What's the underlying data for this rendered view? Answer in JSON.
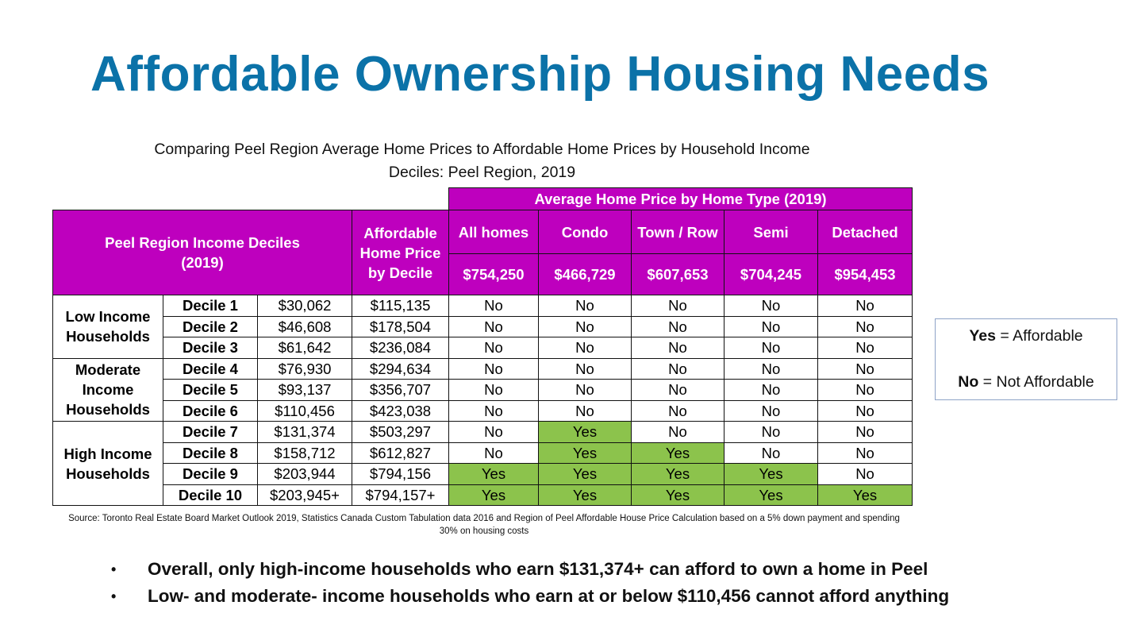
{
  "title": "Affordable Ownership Housing Needs",
  "subtitle_line1": "Comparing Peel Region Average Home Prices to Affordable Home Prices by Household Income",
  "subtitle_line2": "Deciles: Peel Region, 2019",
  "table": {
    "group_header": "Average Home Price by Home Type (2019)",
    "income_header": "Peel Region Income Deciles (2019)",
    "affordable_header": "Affordable Home Price by Decile",
    "home_types": [
      {
        "label": "All homes",
        "price": "$754,250"
      },
      {
        "label": "Condo",
        "price": "$466,729"
      },
      {
        "label": "Town / Row",
        "price": "$607,653"
      },
      {
        "label": "Semi",
        "price": "$704,245"
      },
      {
        "label": "Detached",
        "price": "$954,453"
      }
    ],
    "groups": [
      {
        "label": "Low Income Households",
        "rows": 3
      },
      {
        "label": "Moderate Income Households",
        "rows": 3
      },
      {
        "label": "High Income Households",
        "rows": 4
      }
    ],
    "rows": [
      {
        "decile": "Decile 1",
        "income": "$30,062",
        "affordable": "$115,135",
        "values": [
          "No",
          "No",
          "No",
          "No",
          "No"
        ]
      },
      {
        "decile": "Decile 2",
        "income": "$46,608",
        "affordable": "$178,504",
        "values": [
          "No",
          "No",
          "No",
          "No",
          "No"
        ]
      },
      {
        "decile": "Decile 3",
        "income": "$61,642",
        "affordable": "$236,084",
        "values": [
          "No",
          "No",
          "No",
          "No",
          "No"
        ]
      },
      {
        "decile": "Decile 4",
        "income": "$76,930",
        "affordable": "$294,634",
        "values": [
          "No",
          "No",
          "No",
          "No",
          "No"
        ]
      },
      {
        "decile": "Decile 5",
        "income": "$93,137",
        "affordable": "$356,707",
        "values": [
          "No",
          "No",
          "No",
          "No",
          "No"
        ]
      },
      {
        "decile": "Decile 6",
        "income": "$110,456",
        "affordable": "$423,038",
        "values": [
          "No",
          "No",
          "No",
          "No",
          "No"
        ]
      },
      {
        "decile": "Decile 7",
        "income": "$131,374",
        "affordable": "$503,297",
        "values": [
          "No",
          "Yes",
          "No",
          "No",
          "No"
        ]
      },
      {
        "decile": "Decile 8",
        "income": "$158,712",
        "affordable": "$612,827",
        "values": [
          "No",
          "Yes",
          "Yes",
          "No",
          "No"
        ]
      },
      {
        "decile": "Decile 9",
        "income": "$203,944",
        "affordable": "$794,156",
        "values": [
          "Yes",
          "Yes",
          "Yes",
          "Yes",
          "No"
        ]
      },
      {
        "decile": "Decile 10",
        "income": "$203,945+",
        "affordable": "$794,157+",
        "values": [
          "Yes",
          "Yes",
          "Yes",
          "Yes",
          "Yes"
        ]
      }
    ]
  },
  "source": "Source: Toronto Real Estate Board Market Outlook 2019, Statistics Canada Custom Tabulation data 2016 and Region of Peel Affordable House Price Calculation based on a 5% down payment and spending 30% on housing costs",
  "legend": {
    "yes_key": "Yes",
    "yes_text": " = Affordable",
    "no_key": "No",
    "no_text": " = Not Affordable"
  },
  "bullets": [
    "Overall, only high-income households who earn $131,374+ can afford to own a home in Peel",
    "Low- and moderate- income households who earn at or below $110,456 cannot afford anything"
  ],
  "colors": {
    "header": "#be00be",
    "affordable": "#8cc34c",
    "title": "#0b72a8"
  }
}
